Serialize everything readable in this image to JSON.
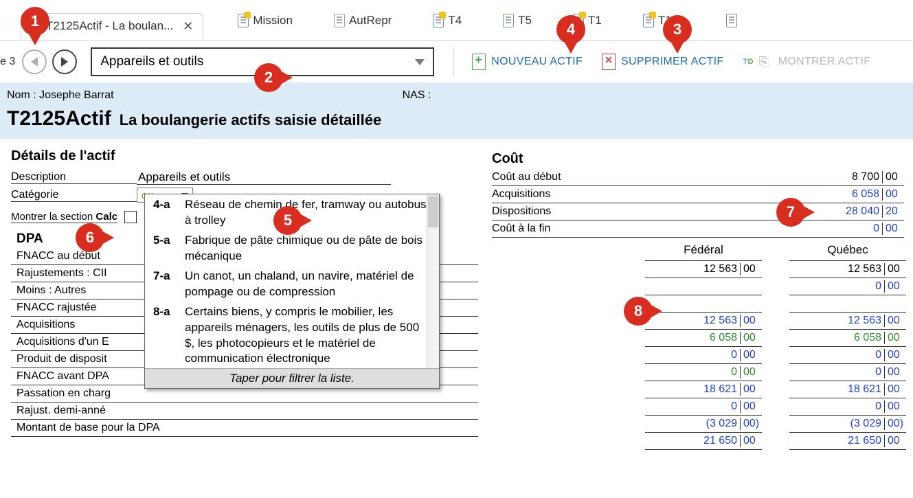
{
  "tabs": [
    {
      "label": "T2125Actif - La boulan...",
      "active": true
    },
    {
      "label": "Mission"
    },
    {
      "label": "AutRepr"
    },
    {
      "label": "T4"
    },
    {
      "label": "T5"
    },
    {
      "label": "T1"
    },
    {
      "label": "T183"
    }
  ],
  "toolbar": {
    "prefix": "e 3",
    "select_value": "Appareils et outils",
    "new_asset": "NOUVEAU ACTIF",
    "delete_asset": "SUPPRIMER ACTIF",
    "show_asset": "MONTRER ACTIF"
  },
  "band": {
    "name_label": "Nom : Josephe Barrat",
    "nas_label": "NAS :",
    "title": "T2125Actif",
    "subtitle": "La boulangerie actifs saisie détaillée"
  },
  "details": {
    "heading": "Détails de l'actif",
    "desc_label": "Description",
    "desc_value": "Appareils et outils",
    "cat_label": "Catégorie",
    "cat_placeholder": "ou",
    "show_calc_prefix": "Montrer la section ",
    "show_calc_bold": "Calc",
    "dpa_head": "DPA",
    "dpa_rows": [
      "FNACC au début",
      "Rajustements : CII",
      "Moins : Autres",
      "FNACC rajustée",
      "Acquisitions",
      "Acquisitions d'un E",
      "Produit de disposit",
      "FNACC avant DPA",
      "Passation en charg",
      "Rajust. demi-anné",
      "Montant de base pour la DPA"
    ]
  },
  "dropdown": {
    "items": [
      {
        "code": "4-a",
        "desc": "Réseau de chemin de fer, tramway ou autobus à trolley"
      },
      {
        "code": "5-a",
        "desc": "Fabrique de pâte chimique ou de pâte de bois mécanique"
      },
      {
        "code": "7-a",
        "desc": "Un canot, un chaland, un navire, matériel de pompage ou de compression"
      },
      {
        "code": "8-a",
        "desc": "Certains biens, y compris le mobilier, les appareils ménagers, les outils de plus de 500 $, les photocopieurs et le matériel de communication électronique"
      }
    ],
    "footer": "Taper pour filtrer la liste."
  },
  "cost": {
    "heading": "Coût",
    "rows": [
      {
        "label": "Coût au début",
        "whole": "8 700",
        "cents": "00",
        "cls": "blk"
      },
      {
        "label": "Acquisitions",
        "whole": "6 058",
        "cents": "00",
        "cls": "blue"
      },
      {
        "label": "Dispositions",
        "whole": "28 040",
        "cents": "20",
        "cls": "blue"
      },
      {
        "label": "Coût à la fin",
        "whole": "0",
        "cents": "00",
        "cls": "blue"
      }
    ]
  },
  "fed_qc": {
    "fed_head": "Fédéral",
    "qc_head": "Québec",
    "rows": [
      {
        "f": {
          "w": "12 563",
          "c": "00",
          "cls": "blk"
        },
        "q": {
          "w": "12 563",
          "c": "00",
          "cls": "blk"
        }
      },
      {
        "f": {
          "w": "",
          "c": "",
          "cls": ""
        },
        "q": {
          "w": "0",
          "c": "00",
          "cls": "blue"
        }
      },
      {
        "f": {
          "w": "",
          "c": "",
          "cls": ""
        },
        "q": {
          "w": "",
          "c": "",
          "cls": ""
        }
      },
      {
        "f": {
          "w": "12 563",
          "c": "00",
          "cls": "blue"
        },
        "q": {
          "w": "12 563",
          "c": "00",
          "cls": "blue"
        }
      },
      {
        "f": {
          "w": "6 058",
          "c": "00",
          "cls": "green"
        },
        "q": {
          "w": "6 058",
          "c": "00",
          "cls": "green"
        }
      },
      {
        "f": {
          "w": "0",
          "c": "00",
          "cls": "blue"
        },
        "q": {
          "w": "0",
          "c": "00",
          "cls": "blue"
        }
      },
      {
        "f": {
          "w": "0",
          "c": "00",
          "cls": "green"
        },
        "q": {
          "w": "0",
          "c": "00",
          "cls": "blue"
        }
      },
      {
        "f": {
          "w": "18 621",
          "c": "00",
          "cls": "blue"
        },
        "q": {
          "w": "18 621",
          "c": "00",
          "cls": "blue"
        }
      },
      {
        "f": {
          "w": "0",
          "c": "00",
          "cls": "blue"
        },
        "q": {
          "w": "0",
          "c": "00",
          "cls": "blue"
        }
      },
      {
        "f": {
          "w": "(3 029",
          "c": "00)",
          "cls": "blue"
        },
        "q": {
          "w": "(3 029",
          "c": "00)",
          "cls": "blue"
        }
      },
      {
        "f": {
          "w": "21 650",
          "c": "00",
          "cls": "blue"
        },
        "q": {
          "w": "21 650",
          "c": "00",
          "cls": "blue"
        }
      }
    ]
  },
  "callouts": {
    "c1": "1",
    "c2": "2",
    "c3": "3",
    "c4": "4",
    "c5": "5",
    "c6": "6",
    "c7": "7",
    "c8": "8"
  }
}
